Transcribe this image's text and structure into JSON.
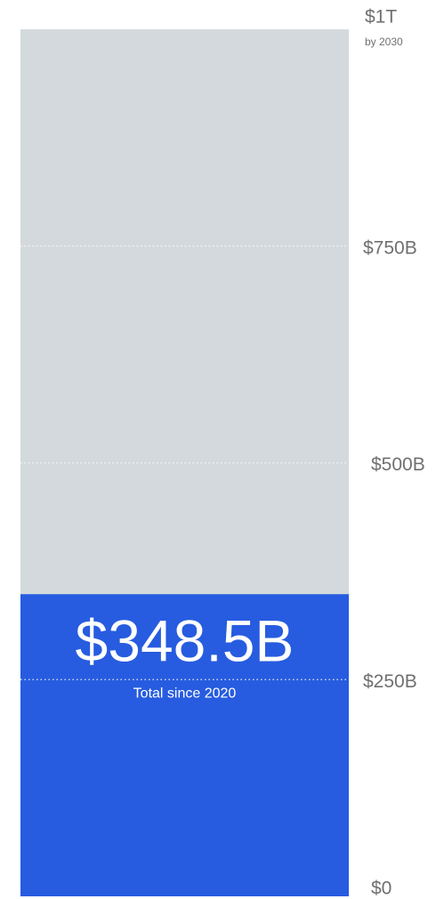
{
  "chart_data": {
    "type": "bar",
    "values": [
      348.5
    ],
    "value_labels": [
      "$348.5B"
    ],
    "annotations": [
      "Total since 2020",
      "by 2030"
    ],
    "color": "#275ce0",
    "track_color": "#d3d9dc",
    "ylim": [
      0,
      1000
    ],
    "yticks": [
      {
        "value": 0,
        "label": "$0"
      },
      {
        "value": 250,
        "label": "$250B"
      },
      {
        "value": 500,
        "label": "$500B"
      },
      {
        "value": 750,
        "label": "$750B"
      },
      {
        "value": 1000,
        "label": "$1T"
      }
    ],
    "grid": true
  }
}
